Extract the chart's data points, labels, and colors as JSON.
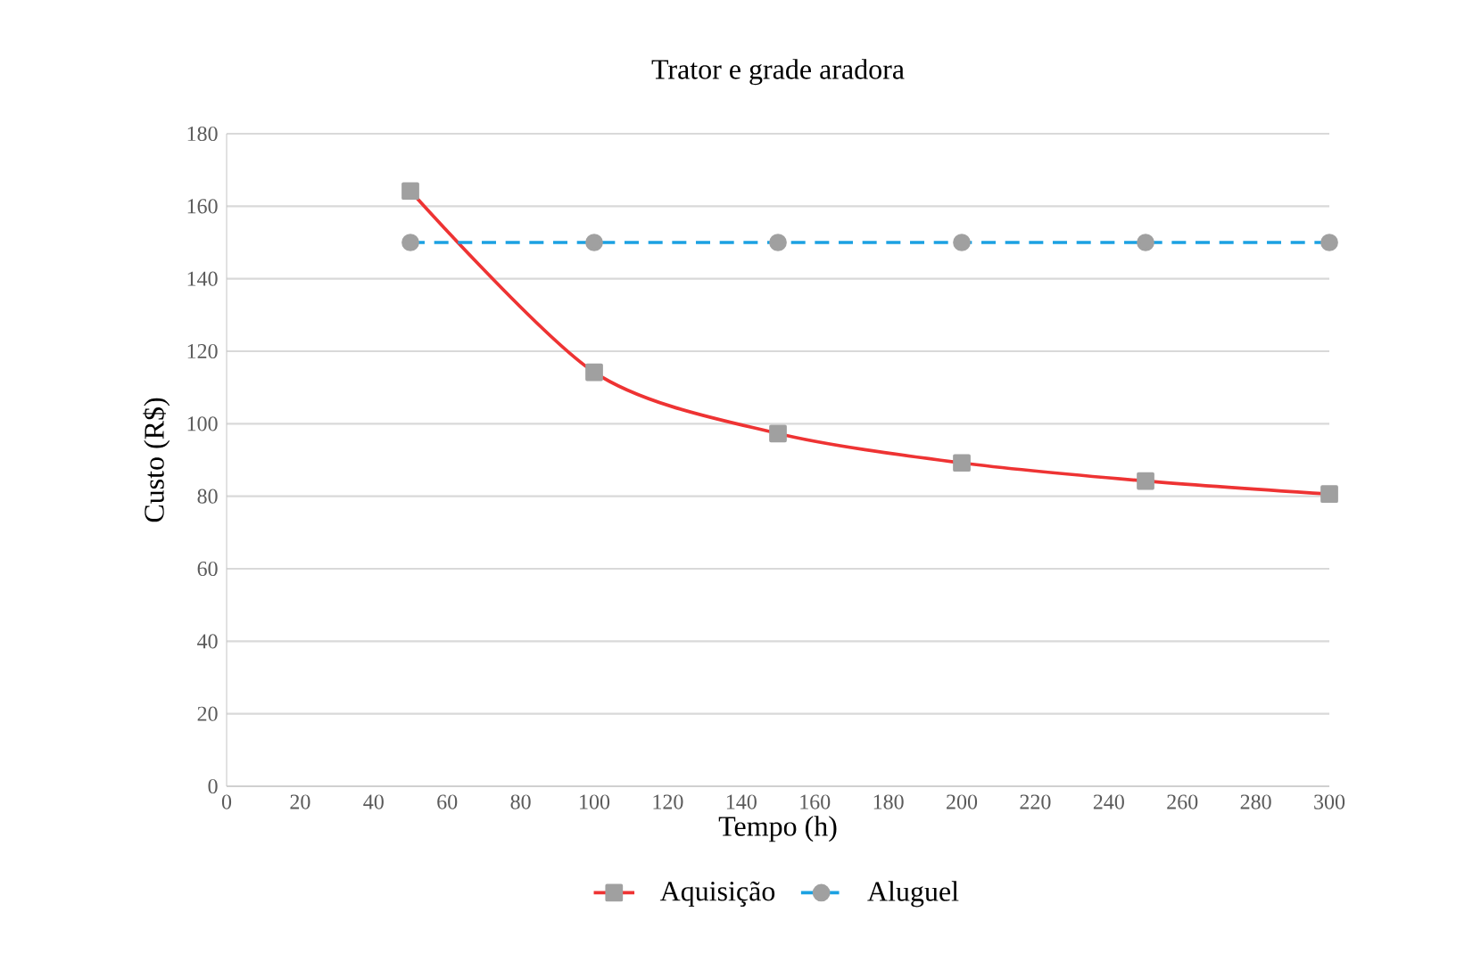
{
  "chart_data": {
    "type": "line",
    "title": "Trator e grade aradora",
    "xlabel": "Tempo (h)",
    "ylabel": "Custo (R$)",
    "x": [
      50,
      100,
      150,
      200,
      250,
      300
    ],
    "series": [
      {
        "name": "Aquisição",
        "color": "#ee3333",
        "values": [
          164.2,
          114.2,
          97.3,
          89.2,
          84.2,
          80.6
        ],
        "marker": "square",
        "line_style": "solid"
      },
      {
        "name": "Aluguel",
        "color": "#1ba1e2",
        "values": [
          150,
          150,
          150,
          150,
          150,
          150
        ],
        "marker": "circle",
        "line_style": "dashed"
      }
    ],
    "xlim": [
      0,
      300
    ],
    "xticks": [
      0,
      20,
      40,
      60,
      80,
      100,
      120,
      140,
      160,
      180,
      200,
      220,
      240,
      260,
      280,
      300
    ],
    "ylim": [
      0,
      180
    ],
    "yticks": [
      0,
      20,
      40,
      60,
      80,
      100,
      120,
      140,
      160,
      180
    ],
    "grid": "y",
    "legend": "bottom"
  }
}
